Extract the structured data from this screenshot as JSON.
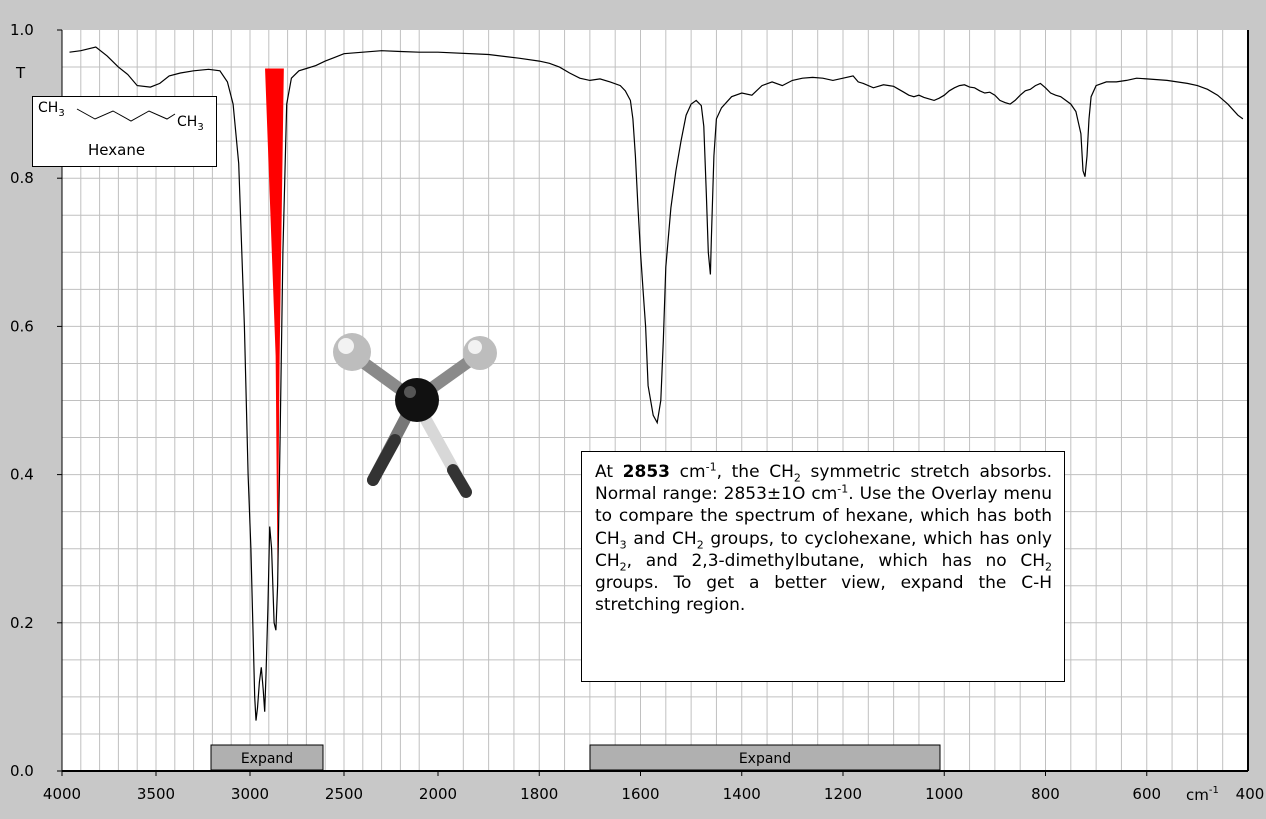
{
  "chart_data": {
    "type": "line",
    "xlabel": "cm-1",
    "ylabel": "T",
    "xlim": [
      4000,
      400
    ],
    "ylim": [
      0,
      1.0
    ],
    "x_ticks": [
      "4000",
      "3500",
      "3000",
      "2500",
      "2000",
      "1800",
      "1600",
      "1400",
      "1200",
      "1000",
      "800",
      "600",
      "400"
    ],
    "x_tick_values": [
      4000,
      3500,
      3000,
      2500,
      2000,
      1800,
      1600,
      1400,
      1200,
      1000,
      800,
      600,
      400
    ],
    "y_ticks": [
      "0.0",
      "0.2",
      "0.4",
      "0.6",
      "0.8",
      "1.0"
    ],
    "y_tick_values": [
      0,
      0.2,
      0.4,
      0.6,
      0.8,
      1.0
    ],
    "x_scale_note": "axis is split: linear 4000-2000 and 2000-400 with different scales",
    "grid": true,
    "series": [
      {
        "points": [
          [
            3960,
            0.97
          ],
          [
            3900,
            0.972
          ],
          [
            3820,
            0.977
          ],
          [
            3760,
            0.965
          ],
          [
            3700,
            0.95
          ],
          [
            3650,
            0.94
          ],
          [
            3600,
            0.925
          ],
          [
            3530,
            0.923
          ],
          [
            3480,
            0.928
          ],
          [
            3430,
            0.938
          ],
          [
            3370,
            0.942
          ],
          [
            3300,
            0.945
          ],
          [
            3220,
            0.947
          ],
          [
            3160,
            0.945
          ],
          [
            3120,
            0.93
          ],
          [
            3090,
            0.9
          ],
          [
            3060,
            0.82
          ],
          [
            3030,
            0.6
          ],
          [
            3010,
            0.4
          ],
          [
            2995,
            0.3
          ],
          [
            2985,
            0.2
          ],
          [
            2975,
            0.1
          ],
          [
            2968,
            0.068
          ],
          [
            2960,
            0.085
          ],
          [
            2950,
            0.12
          ],
          [
            2940,
            0.14
          ],
          [
            2930,
            0.11
          ],
          [
            2922,
            0.08
          ],
          [
            2915,
            0.13
          ],
          [
            2905,
            0.22
          ],
          [
            2895,
            0.33
          ],
          [
            2885,
            0.3
          ],
          [
            2872,
            0.2
          ],
          [
            2862,
            0.19
          ],
          [
            2853,
            0.25
          ],
          [
            2840,
            0.45
          ],
          [
            2825,
            0.7
          ],
          [
            2805,
            0.9
          ],
          [
            2780,
            0.935
          ],
          [
            2740,
            0.945
          ],
          [
            2700,
            0.948
          ],
          [
            2650,
            0.952
          ],
          [
            2600,
            0.958
          ],
          [
            2550,
            0.963
          ],
          [
            2500,
            0.968
          ],
          [
            2400,
            0.97
          ],
          [
            2300,
            0.972
          ],
          [
            2200,
            0.971
          ],
          [
            2100,
            0.97
          ],
          [
            2000,
            0.97
          ],
          [
            1900,
            0.967
          ],
          [
            1840,
            0.962
          ],
          [
            1800,
            0.958
          ],
          [
            1780,
            0.955
          ],
          [
            1760,
            0.95
          ],
          [
            1740,
            0.942
          ],
          [
            1720,
            0.935
          ],
          [
            1700,
            0.932
          ],
          [
            1680,
            0.934
          ],
          [
            1660,
            0.93
          ],
          [
            1640,
            0.925
          ],
          [
            1630,
            0.918
          ],
          [
            1620,
            0.905
          ],
          [
            1615,
            0.88
          ],
          [
            1610,
            0.83
          ],
          [
            1605,
            0.76
          ],
          [
            1600,
            0.7
          ],
          [
            1595,
            0.65
          ],
          [
            1590,
            0.6
          ],
          [
            1585,
            0.52
          ],
          [
            1575,
            0.48
          ],
          [
            1567,
            0.47
          ],
          [
            1560,
            0.5
          ],
          [
            1555,
            0.58
          ],
          [
            1550,
            0.68
          ],
          [
            1540,
            0.76
          ],
          [
            1530,
            0.81
          ],
          [
            1520,
            0.85
          ],
          [
            1510,
            0.885
          ],
          [
            1500,
            0.9
          ],
          [
            1490,
            0.905
          ],
          [
            1480,
            0.898
          ],
          [
            1475,
            0.87
          ],
          [
            1470,
            0.78
          ],
          [
            1466,
            0.7
          ],
          [
            1462,
            0.67
          ],
          [
            1460,
            0.72
          ],
          [
            1455,
            0.83
          ],
          [
            1450,
            0.88
          ],
          [
            1440,
            0.895
          ],
          [
            1420,
            0.91
          ],
          [
            1400,
            0.915
          ],
          [
            1380,
            0.912
          ],
          [
            1360,
            0.925
          ],
          [
            1340,
            0.93
          ],
          [
            1320,
            0.925
          ],
          [
            1300,
            0.932
          ],
          [
            1280,
            0.935
          ],
          [
            1260,
            0.936
          ],
          [
            1240,
            0.935
          ],
          [
            1220,
            0.932
          ],
          [
            1200,
            0.935
          ],
          [
            1180,
            0.938
          ],
          [
            1170,
            0.93
          ],
          [
            1160,
            0.928
          ],
          [
            1140,
            0.922
          ],
          [
            1120,
            0.926
          ],
          [
            1100,
            0.924
          ],
          [
            1080,
            0.916
          ],
          [
            1070,
            0.912
          ],
          [
            1060,
            0.91
          ],
          [
            1050,
            0.912
          ],
          [
            1040,
            0.909
          ],
          [
            1030,
            0.907
          ],
          [
            1020,
            0.905
          ],
          [
            1010,
            0.908
          ],
          [
            1000,
            0.912
          ],
          [
            990,
            0.918
          ],
          [
            980,
            0.922
          ],
          [
            970,
            0.925
          ],
          [
            960,
            0.926
          ],
          [
            950,
            0.923
          ],
          [
            940,
            0.922
          ],
          [
            930,
            0.918
          ],
          [
            920,
            0.915
          ],
          [
            910,
            0.916
          ],
          [
            900,
            0.912
          ],
          [
            890,
            0.905
          ],
          [
            880,
            0.902
          ],
          [
            870,
            0.9
          ],
          [
            860,
            0.905
          ],
          [
            850,
            0.912
          ],
          [
            840,
            0.918
          ],
          [
            830,
            0.92
          ],
          [
            820,
            0.925
          ],
          [
            810,
            0.928
          ],
          [
            800,
            0.922
          ],
          [
            790,
            0.915
          ],
          [
            780,
            0.912
          ],
          [
            770,
            0.91
          ],
          [
            760,
            0.905
          ],
          [
            750,
            0.9
          ],
          [
            740,
            0.89
          ],
          [
            735,
            0.875
          ],
          [
            730,
            0.86
          ],
          [
            726,
            0.81
          ],
          [
            722,
            0.802
          ],
          [
            718,
            0.83
          ],
          [
            714,
            0.88
          ],
          [
            710,
            0.91
          ],
          [
            700,
            0.925
          ],
          [
            680,
            0.93
          ],
          [
            660,
            0.93
          ],
          [
            640,
            0.932
          ],
          [
            620,
            0.935
          ],
          [
            600,
            0.934
          ],
          [
            580,
            0.933
          ],
          [
            560,
            0.932
          ],
          [
            540,
            0.93
          ],
          [
            520,
            0.928
          ],
          [
            500,
            0.925
          ],
          [
            480,
            0.92
          ],
          [
            460,
            0.912
          ],
          [
            440,
            0.9
          ],
          [
            420,
            0.885
          ],
          [
            410,
            0.88
          ]
        ]
      }
    ],
    "highlight_band": {
      "x_range": [
        2920,
        2820
      ],
      "bottom_x": 2853,
      "bottom_y": 0.25
    }
  },
  "molecule_label": {
    "left": "CH",
    "left_sub": "3",
    "right": "CH",
    "right_sub": "3",
    "name": "Hexane"
  },
  "info_text": {
    "p1": "At ",
    "wavenumber": "2853",
    "p2": " cm",
    "sup1": "-1",
    "p3": ", the CH",
    "sub1": "2",
    "p4": " symmetric stretch absorbs. Normal range: 2853±1O  cm",
    "sup2": "-1",
    "p5": ". Use the Overlay menu to compare the spectrum of hexane, which has both CH",
    "sub2": "3",
    "p6": " and CH",
    "sub3": "2",
    "p7": " groups, to cyclohexane, which has only CH",
    "sub4": "2",
    "p8": ", and 2,3-dimethylbutane, which has no CH",
    "sub5": "2",
    "p9": " groups. To get a better view, expand the C-H stretching region."
  },
  "expand_buttons": [
    {
      "label": "Expand"
    },
    {
      "label": "Expand"
    }
  ],
  "axis_unit": {
    "text": "cm",
    "sup": "-1"
  },
  "y_unit": "T",
  "colors": {
    "background": "#c8c8c8",
    "plot_bg": "#ffffff",
    "grid": "#c0c0c0",
    "highlight": "#ff0000",
    "line": "#000000",
    "button": "#b0b0b0"
  }
}
